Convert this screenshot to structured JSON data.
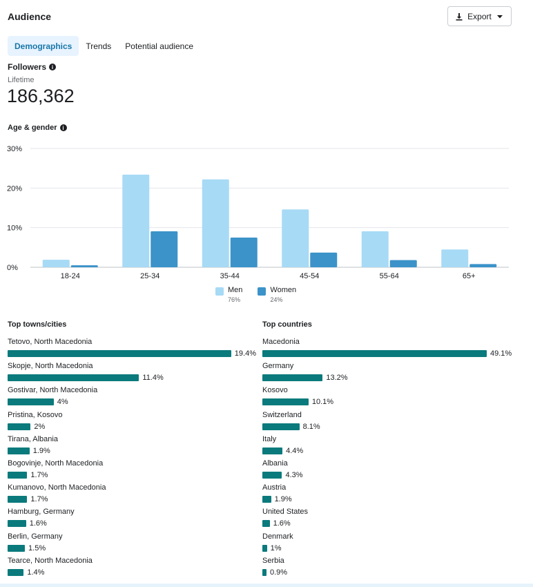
{
  "header": {
    "title": "Audience",
    "export_label": "Export"
  },
  "tabs": [
    {
      "label": "Demographics",
      "active": true
    },
    {
      "label": "Trends",
      "active": false
    },
    {
      "label": "Potential audience",
      "active": false
    }
  ],
  "followers": {
    "label": "Followers",
    "period": "Lifetime",
    "value": "186,362"
  },
  "age_gender": {
    "label": "Age & gender"
  },
  "chart_data": {
    "type": "bar",
    "categories": [
      "18-24",
      "25-34",
      "35-44",
      "45-54",
      "55-64",
      "65+"
    ],
    "series": [
      {
        "name": "Men",
        "color": "#a7daf5",
        "values": [
          1.9,
          23.4,
          22.2,
          14.6,
          9.1,
          4.5
        ]
      },
      {
        "name": "Women",
        "color": "#3b93c9",
        "values": [
          0.5,
          9.1,
          7.5,
          3.7,
          1.8,
          0.8
        ]
      }
    ],
    "yticks": [
      "30%",
      "20%",
      "10%",
      "0%"
    ],
    "ylim": [
      0,
      30
    ],
    "legend": [
      {
        "name": "Men",
        "pct": "76%"
      },
      {
        "name": "Women",
        "pct": "24%"
      }
    ]
  },
  "top_towns": {
    "title": "Top towns/cities",
    "items": [
      {
        "name": "Tetovo, North Macedonia",
        "value": 19.4,
        "label": "19.4%"
      },
      {
        "name": "Skopje, North Macedonia",
        "value": 11.4,
        "label": "11.4%"
      },
      {
        "name": "Gostivar, North Macedonia",
        "value": 4,
        "label": "4%"
      },
      {
        "name": "Pristina, Kosovo",
        "value": 2,
        "label": "2%"
      },
      {
        "name": "Tirana, Albania",
        "value": 1.9,
        "label": "1.9%"
      },
      {
        "name": "Bogovinje, North Macedonia",
        "value": 1.7,
        "label": "1.7%"
      },
      {
        "name": "Kumanovo, North Macedonia",
        "value": 1.7,
        "label": "1.7%"
      },
      {
        "name": "Hamburg, Germany",
        "value": 1.6,
        "label": "1.6%"
      },
      {
        "name": "Berlin, Germany",
        "value": 1.5,
        "label": "1.5%"
      },
      {
        "name": "Tearce, North Macedonia",
        "value": 1.4,
        "label": "1.4%"
      }
    ]
  },
  "top_countries": {
    "title": "Top countries",
    "items": [
      {
        "name": "Macedonia",
        "value": 49.1,
        "label": "49.1%"
      },
      {
        "name": "Germany",
        "value": 13.2,
        "label": "13.2%"
      },
      {
        "name": "Kosovo",
        "value": 10.1,
        "label": "10.1%"
      },
      {
        "name": "Switzerland",
        "value": 8.1,
        "label": "8.1%"
      },
      {
        "name": "Italy",
        "value": 4.4,
        "label": "4.4%"
      },
      {
        "name": "Albania",
        "value": 4.3,
        "label": "4.3%"
      },
      {
        "name": "Austria",
        "value": 1.9,
        "label": "1.9%"
      },
      {
        "name": "United States",
        "value": 1.6,
        "label": "1.6%"
      },
      {
        "name": "Denmark",
        "value": 1,
        "label": "1%"
      },
      {
        "name": "Serbia",
        "value": 0.9,
        "label": "0.9%"
      }
    ]
  }
}
